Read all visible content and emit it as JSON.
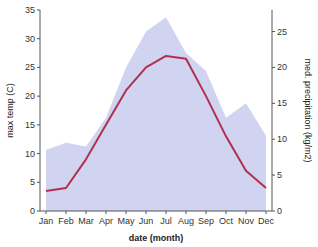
{
  "chart_data": {
    "type": "line",
    "categories": [
      "Jan",
      "Feb",
      "Mar",
      "Apr",
      "May",
      "Jun",
      "Jul",
      "Aug",
      "Sep",
      "Oct",
      "Nov",
      "Dec"
    ],
    "series": [
      {
        "type": "area",
        "axis": "y2",
        "color": "#b0b8e8",
        "values": [
          8.5,
          9.5,
          9.0,
          13.0,
          20.0,
          25.0,
          27.0,
          22.0,
          19.5,
          13.0,
          15.0,
          10.5
        ]
      },
      {
        "type": "line",
        "color": "#b03050",
        "values": [
          3.5,
          4.0,
          9.0,
          15.0,
          21.0,
          25.0,
          27.0,
          26.5,
          20.0,
          13.0,
          7.0,
          4.0
        ]
      }
    ],
    "xlabel": "date (month)",
    "ylabel": "max temp (C)",
    "y2label": "med. precipitation (kg/m2)",
    "ylim": [
      0,
      35
    ],
    "yticks": [
      0,
      5,
      10,
      15,
      20,
      25,
      30,
      35
    ],
    "y2lim": [
      0,
      28
    ],
    "y2ticks": [
      0,
      5,
      10,
      15,
      20,
      25
    ],
    "grid": false
  }
}
